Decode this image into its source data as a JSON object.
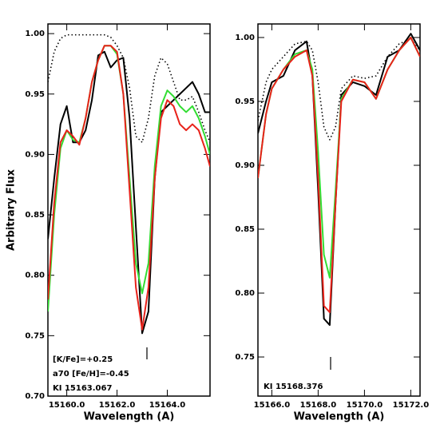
{
  "chart_data": [
    {
      "type": "line",
      "y_label": "Arbitrary Flux",
      "x_label": "Wavelength (A)",
      "annotations": [
        "[K/Fe]=+0.25",
        "a70 [Fe/H]=-0.45",
        "KI 15163.067"
      ],
      "xlim": [
        15159.25,
        15165.7
      ],
      "ylim": [
        0.7,
        1.008
      ],
      "xticks": [
        {
          "value": 15160,
          "label": "15160.0"
        },
        {
          "value": 15162,
          "label": "15162.0"
        },
        {
          "value": 15164,
          "label": "15164.0"
        }
      ],
      "yticks": [
        {
          "value": 0.7,
          "label": "0.70"
        },
        0.75,
        {
          "value": 0.8,
          "label": "0.80"
        },
        0.85,
        {
          "value": 0.9,
          "label": "0.90"
        },
        0.95,
        {
          "value": 1,
          "label": "1.00"
        }
      ],
      "x": [
        15159.25,
        15159.5,
        15159.75,
        15160.0,
        15160.25,
        15160.5,
        15160.75,
        15161.0,
        15161.25,
        15161.5,
        15161.75,
        15162.0,
        15162.25,
        15162.5,
        15162.75,
        15163.0,
        15163.25,
        15163.5,
        15163.75,
        15164.0,
        15164.25,
        15164.5,
        15164.75,
        15165.0,
        15165.25,
        15165.5,
        15165.7
      ],
      "series": [
        {
          "color": "#000000",
          "dash": "dotted",
          "values": [
            0.96,
            0.985,
            0.996,
            0.999,
            0.999,
            0.999,
            0.999,
            0.999,
            0.999,
            0.999,
            0.997,
            0.99,
            0.98,
            0.955,
            0.915,
            0.91,
            0.93,
            0.965,
            0.98,
            0.975,
            0.96,
            0.945,
            0.945,
            0.948,
            0.935,
            0.92,
            0.91
          ]
        },
        {
          "color": "#000000",
          "dash": "solid",
          "values": [
            0.83,
            0.88,
            0.925,
            0.94,
            0.91,
            0.91,
            0.92,
            0.945,
            0.982,
            0.985,
            0.972,
            0.978,
            0.98,
            0.93,
            0.84,
            0.752,
            0.77,
            0.88,
            0.935,
            0.94,
            0.945,
            0.95,
            0.955,
            0.96,
            0.95,
            0.935,
            0.935
          ]
        },
        {
          "color": "#33dd33",
          "dash": "solid",
          "values": [
            0.77,
            0.85,
            0.905,
            0.92,
            0.912,
            0.91,
            0.93,
            0.96,
            0.978,
            0.99,
            0.99,
            0.983,
            0.95,
            0.88,
            0.81,
            0.785,
            0.81,
            0.89,
            0.94,
            0.953,
            0.948,
            0.94,
            0.935,
            0.94,
            0.93,
            0.915,
            0.9
          ]
        },
        {
          "color": "#e8221a",
          "dash": "solid",
          "values": [
            0.78,
            0.86,
            0.91,
            0.92,
            0.915,
            0.908,
            0.93,
            0.96,
            0.978,
            0.99,
            0.99,
            0.985,
            0.95,
            0.87,
            0.79,
            0.755,
            0.79,
            0.88,
            0.93,
            0.945,
            0.94,
            0.925,
            0.92,
            0.925,
            0.92,
            0.905,
            0.89
          ]
        }
      ]
    },
    {
      "type": "line",
      "x_label": "Wavelength (A)",
      "annotations": [
        "KI 15168.376"
      ],
      "xlim": [
        15165.4,
        15172.4
      ],
      "ylim": [
        0.7194,
        1.0106
      ],
      "xticks": [
        {
          "value": 15166,
          "label": "15166.0"
        },
        {
          "value": 15168,
          "label": "15168.0"
        },
        {
          "value": 15170,
          "label": "15170.0"
        },
        {
          "value": 15172,
          "label": "15172.0"
        }
      ],
      "yticks": [
        0.75,
        {
          "value": 0.8,
          "label": "0.80"
        },
        0.85,
        {
          "value": 0.9,
          "label": "0.90"
        },
        0.95,
        {
          "value": 1,
          "label": "1.00"
        }
      ],
      "x": [
        15165.4,
        15165.75,
        15166.0,
        15166.5,
        15167.0,
        15167.5,
        15167.75,
        15168.0,
        15168.25,
        15168.5,
        15168.75,
        15169.0,
        15169.5,
        15170.0,
        15170.5,
        15171.0,
        15171.5,
        15172.0,
        15172.4
      ],
      "series": [
        {
          "color": "#000000",
          "dash": "dotted",
          "values": [
            0.935,
            0.965,
            0.975,
            0.985,
            0.995,
            0.997,
            0.99,
            0.965,
            0.93,
            0.92,
            0.93,
            0.96,
            0.97,
            0.968,
            0.97,
            0.985,
            0.995,
            0.999,
            0.99
          ]
        },
        {
          "color": "#000000",
          "dash": "solid",
          "values": [
            0.925,
            0.95,
            0.965,
            0.97,
            0.99,
            0.997,
            0.97,
            0.88,
            0.78,
            0.775,
            0.87,
            0.955,
            0.965,
            0.962,
            0.955,
            0.985,
            0.99,
            1.003,
            0.99
          ]
        },
        {
          "color": "#33dd33",
          "dash": "solid",
          "values": [
            0.89,
            0.94,
            0.96,
            0.975,
            0.987,
            0.99,
            0.975,
            0.91,
            0.83,
            0.812,
            0.88,
            0.952,
            0.967,
            0.965,
            0.952,
            0.975,
            0.99,
            1.0,
            0.985
          ]
        },
        {
          "color": "#e8221a",
          "dash": "solid",
          "values": [
            0.89,
            0.94,
            0.96,
            0.975,
            0.985,
            0.99,
            0.97,
            0.89,
            0.79,
            0.785,
            0.87,
            0.95,
            0.967,
            0.965,
            0.952,
            0.975,
            0.99,
            1.0,
            0.985
          ]
        }
      ]
    }
  ]
}
